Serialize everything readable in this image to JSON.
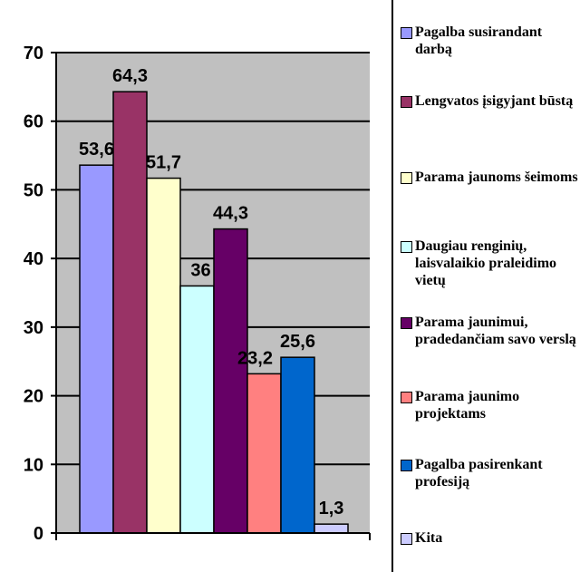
{
  "chart_data": {
    "type": "bar",
    "title": "",
    "xlabel": "",
    "ylabel": "",
    "ylim": [
      0,
      70
    ],
    "yticks": [
      "0",
      "10",
      "20",
      "30",
      "40",
      "50",
      "60",
      "70"
    ],
    "grid": true,
    "legend_position": "right",
    "series": [
      {
        "name": "Pagalba susirandant darbą",
        "value": 53.6,
        "label": "53,6",
        "color": "#9999ff"
      },
      {
        "name": "Lengvatos įsigyjant būstą",
        "value": 64.3,
        "label": "64,3",
        "color": "#993366"
      },
      {
        "name": "Parama jaunoms šeimoms",
        "value": 51.7,
        "label": "51,7",
        "color": "#ffffcc"
      },
      {
        "name": "Daugiau renginių, laisvalaikio praleidimo vietų",
        "value": 36,
        "label": "36",
        "color": "#ccffff"
      },
      {
        "name": "Parama jaunimui, pradedančiam savo verslą",
        "value": 44.3,
        "label": "44,3",
        "color": "#660066"
      },
      {
        "name": "Parama jaunimo projektams",
        "value": 23.2,
        "label": "23,2",
        "color": "#ff8080"
      },
      {
        "name": "Pagalba pasirenkant profesiją",
        "value": 25.6,
        "label": "25,6",
        "color": "#0066cc"
      },
      {
        "name": "Kita",
        "value": 1.3,
        "label": "1,3",
        "color": "#ccccff"
      }
    ],
    "plot_background": "#c0c0c0"
  }
}
